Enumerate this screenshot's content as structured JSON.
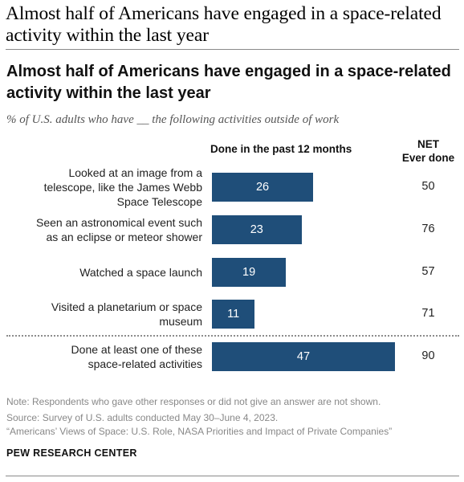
{
  "page": {
    "headline": "Almost half of Americans have engaged in a space-related activity within the last year"
  },
  "chart_data": {
    "type": "bar",
    "title": "Almost half of Americans have engaged in a space-related activity within the last year",
    "subtitle": "% of U.S. adults who have __ the following activities outside of work",
    "bar_column_header": "Done in the past 12 months",
    "net_column_header": [
      "NET",
      "Ever done"
    ],
    "categories": [
      [
        "Looked at an image from a",
        "telescope, like the James Webb",
        "Space Telescope"
      ],
      [
        "Seen an astronomical event such",
        "as an eclipse or meteor shower"
      ],
      [
        "Watched a space launch"
      ],
      [
        "Visited a planetarium or space",
        "museum"
      ],
      [
        "Done at least one of these",
        "space-related activities"
      ]
    ],
    "series": [
      {
        "name": "Done in the past 12 months",
        "values": [
          26,
          23,
          19,
          11,
          47
        ]
      },
      {
        "name": "NET Ever done",
        "values": [
          50,
          76,
          57,
          71,
          90
        ]
      }
    ],
    "bar_color": "#1f4e79",
    "orientation": "horizontal"
  },
  "footer": {
    "note": "Note: Respondents who gave other responses or did not give an answer are not shown.",
    "source": "Source: Survey of U.S. adults conducted May 30–June 4, 2023.",
    "report": "“Americans’ Views of Space: U.S. Role, NASA Priorities and Impact of Private Companies”",
    "brand": "PEW RESEARCH CENTER"
  }
}
